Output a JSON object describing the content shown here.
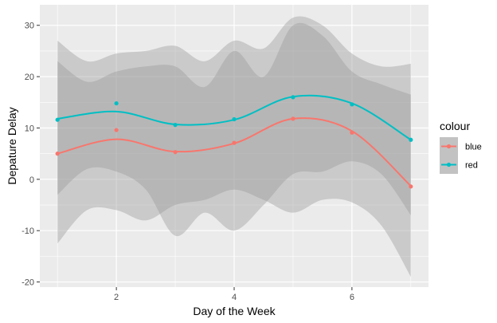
{
  "chart_data": {
    "type": "scatter",
    "title": "",
    "xlabel": "Day of the Week",
    "ylabel": "Depature Delay",
    "xlim": [
      0.7,
      7.3
    ],
    "ylim": [
      -21,
      34
    ],
    "x_ticks": [
      2,
      4,
      6
    ],
    "y_ticks": [
      -20,
      -10,
      0,
      10,
      20,
      30
    ],
    "grid": true,
    "legend": {
      "title": "colour",
      "position": "right"
    },
    "series": [
      {
        "name": "blue",
        "color": "#f8766d",
        "points": [
          [
            1,
            5.0
          ],
          [
            2,
            9.6
          ],
          [
            3,
            5.3
          ],
          [
            4,
            7.1
          ],
          [
            5,
            11.8
          ],
          [
            6,
            9.1
          ],
          [
            7,
            -1.4
          ]
        ],
        "smooth": [
          [
            1,
            5.0
          ],
          [
            2,
            7.8
          ],
          [
            3,
            5.4
          ],
          [
            4,
            7.0
          ],
          [
            5,
            11.8
          ],
          [
            6,
            9.4
          ],
          [
            7,
            -1.3
          ]
        ],
        "band_upper": [
          [
            1,
            23.0
          ],
          [
            1.5,
            19.0
          ],
          [
            2,
            21.0
          ],
          [
            2.5,
            22.0
          ],
          [
            3,
            22.0
          ],
          [
            3.5,
            18.0
          ],
          [
            4,
            25.0
          ],
          [
            4.5,
            20.0
          ],
          [
            5,
            30.0
          ],
          [
            5.5,
            28.0
          ],
          [
            6,
            21.0
          ],
          [
            6.5,
            18.5
          ],
          [
            7,
            16.5
          ]
        ],
        "band_lower": [
          [
            1,
            -3.0
          ],
          [
            1.5,
            2.0
          ],
          [
            2,
            1.5
          ],
          [
            2.5,
            -2.0
          ],
          [
            3,
            -11.0
          ],
          [
            3.5,
            -6.5
          ],
          [
            4,
            -10.0
          ],
          [
            4.5,
            -5.0
          ],
          [
            5,
            1.0
          ],
          [
            5.5,
            1.5
          ],
          [
            6,
            3.5
          ],
          [
            6.5,
            1.0
          ],
          [
            7,
            -7.0
          ]
        ]
      },
      {
        "name": "red",
        "color": "#00bfc4",
        "points": [
          [
            1,
            11.6
          ],
          [
            2,
            14.8
          ],
          [
            3,
            10.6
          ],
          [
            4,
            11.7
          ],
          [
            5,
            16.0
          ],
          [
            6,
            14.6
          ],
          [
            7,
            7.7
          ]
        ],
        "smooth": [
          [
            1,
            11.8
          ],
          [
            2,
            13.2
          ],
          [
            3,
            10.7
          ],
          [
            4,
            11.6
          ],
          [
            5,
            16.1
          ],
          [
            6,
            14.8
          ],
          [
            7,
            7.7
          ]
        ],
        "band_upper": [
          [
            1,
            27.0
          ],
          [
            1.5,
            23.0
          ],
          [
            2,
            24.5
          ],
          [
            2.5,
            25.0
          ],
          [
            3,
            26.0
          ],
          [
            3.5,
            23.0
          ],
          [
            4,
            27.0
          ],
          [
            4.5,
            25.5
          ],
          [
            5,
            31.5
          ],
          [
            5.5,
            30.0
          ],
          [
            6,
            24.5
          ],
          [
            6.5,
            22.0
          ],
          [
            7,
            22.5
          ]
        ],
        "band_lower": [
          [
            1,
            -12.5
          ],
          [
            1.5,
            -6.0
          ],
          [
            2,
            -6.0
          ],
          [
            2.5,
            -8.0
          ],
          [
            3,
            -5.0
          ],
          [
            3.5,
            -4.0
          ],
          [
            4,
            -2.0
          ],
          [
            4.5,
            -4.0
          ],
          [
            5,
            -6.5
          ],
          [
            5.5,
            -4.0
          ],
          [
            6,
            -4.5
          ],
          [
            6.5,
            -9.0
          ],
          [
            7,
            -19.0
          ]
        ]
      }
    ]
  },
  "colors": {
    "panel_bg": "#ebebeb",
    "grid_major": "#ffffff",
    "band_fill": "#999999"
  }
}
